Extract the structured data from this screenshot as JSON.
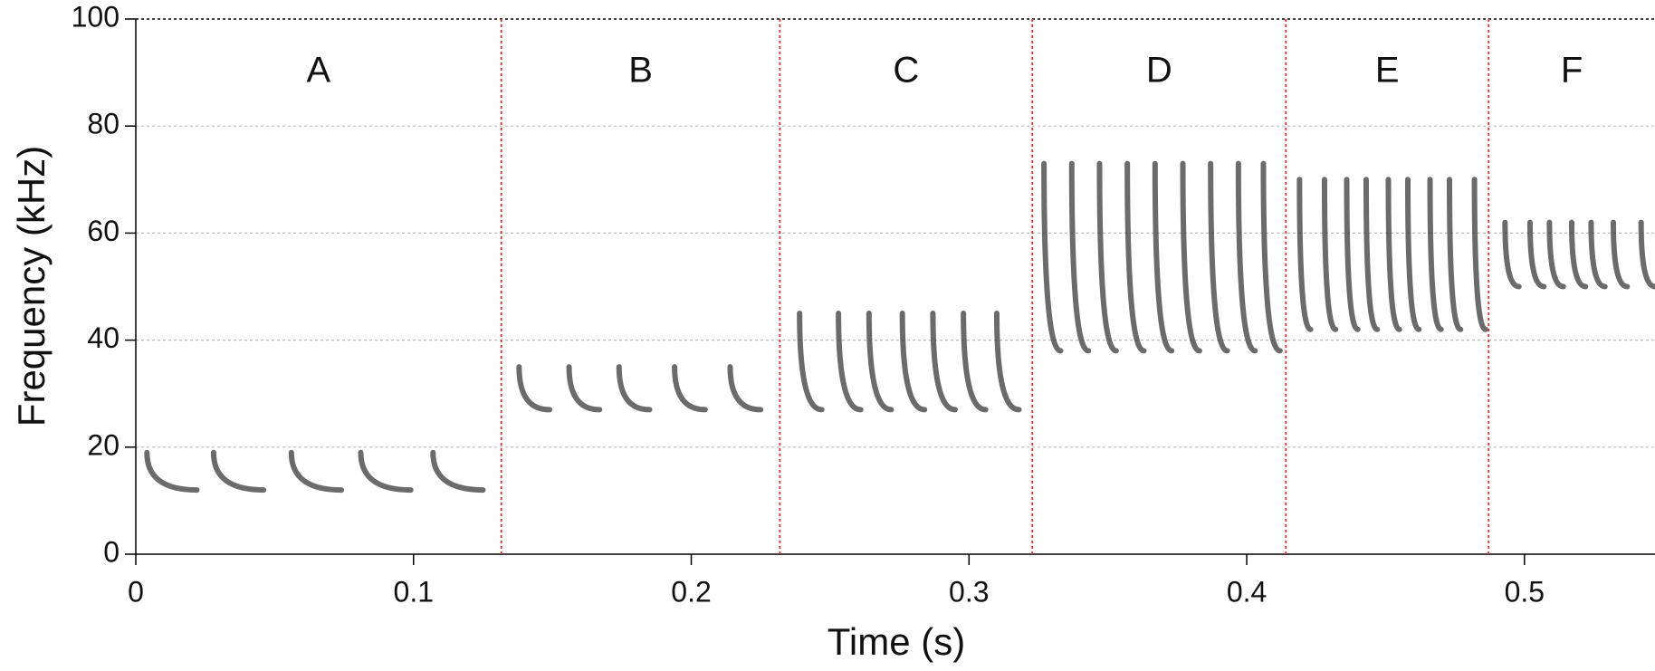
{
  "chart_data": {
    "type": "spectrogram",
    "x_label": "Time (s)",
    "y_label": "Frequency (kHz)",
    "xlim": [
      0,
      0.547
    ],
    "ylim": [
      0,
      100
    ],
    "xticks": [
      0,
      0.1,
      0.2,
      0.3,
      0.4,
      0.5
    ],
    "yticks": [
      0,
      20,
      40,
      60,
      80,
      100
    ],
    "grid": true,
    "boundary_color": "#e03030",
    "call_color": "#3a3a3a",
    "boundaries": [
      0.1316,
      0.2319,
      0.3228,
      0.4141,
      0.4871
    ],
    "segments": [
      {
        "label": "A",
        "call_times": [
          0.004,
          0.028,
          0.056,
          0.081,
          0.107
        ],
        "freq_range": [
          12,
          19
        ],
        "call_duration": 0.018
      },
      {
        "label": "B",
        "call_times": [
          0.138,
          0.156,
          0.174,
          0.194,
          0.214
        ],
        "freq_range": [
          27,
          35
        ],
        "call_duration": 0.011
      },
      {
        "label": "C",
        "call_times": [
          0.239,
          0.253,
          0.264,
          0.276,
          0.287,
          0.298,
          0.31
        ],
        "freq_range": [
          27,
          45
        ],
        "call_duration": 0.008
      },
      {
        "label": "D",
        "call_times": [
          0.327,
          0.337,
          0.347,
          0.357,
          0.367,
          0.377,
          0.387,
          0.397,
          0.406
        ],
        "freq_range": [
          38,
          73
        ],
        "call_duration": 0.006
      },
      {
        "label": "E",
        "call_times": [
          0.419,
          0.428,
          0.436,
          0.443,
          0.451,
          0.458,
          0.466,
          0.473,
          0.482
        ],
        "freq_range": [
          42,
          70
        ],
        "call_duration": 0.004
      },
      {
        "label": "F",
        "call_times": [
          0.493,
          0.502,
          0.509,
          0.517,
          0.524,
          0.532,
          0.542
        ],
        "freq_range": [
          50,
          62
        ],
        "call_duration": 0.005
      }
    ]
  }
}
